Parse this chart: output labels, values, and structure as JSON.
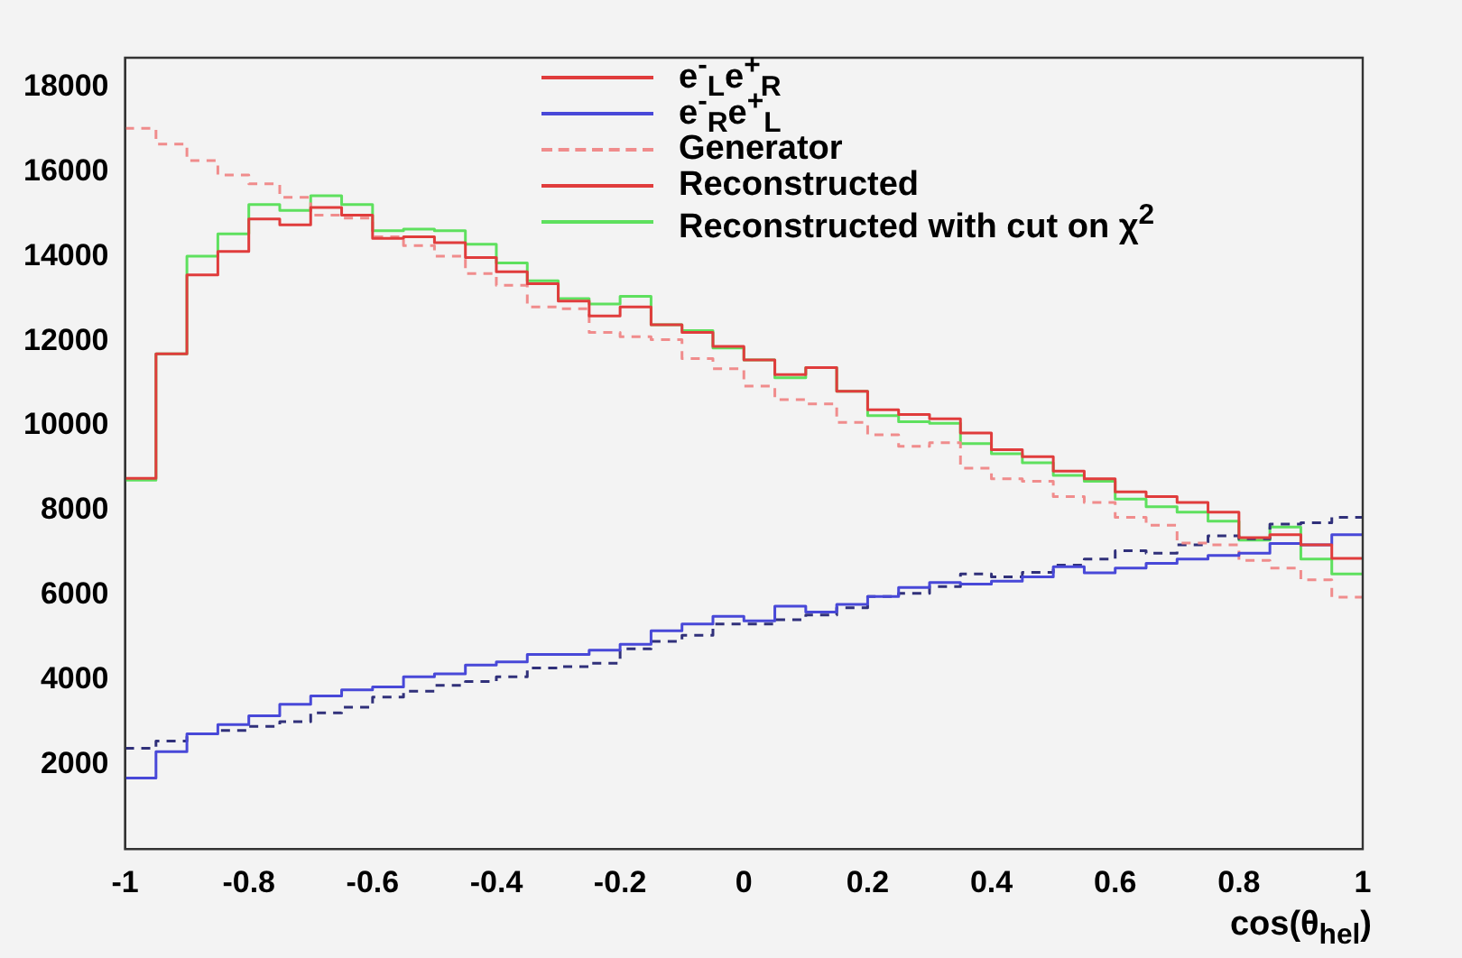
{
  "chart_data": {
    "type": "histogram",
    "xlabel": "cos(θ$_{hel}$)",
    "bins": [
      -1,
      -0.95,
      -0.9,
      -0.85,
      -0.8,
      -0.75,
      -0.7,
      -0.65,
      -0.6,
      -0.55,
      -0.5,
      -0.45,
      -0.4,
      -0.35,
      -0.3,
      -0.25,
      -0.2,
      -0.15,
      -0.1,
      -0.05,
      0,
      0.05,
      0.1,
      0.15,
      0.2,
      0.25,
      0.3,
      0.35,
      0.4,
      0.45,
      0.5,
      0.55,
      0.6,
      0.65,
      0.7,
      0.75,
      0.8,
      0.85,
      0.9,
      0.95,
      1
    ],
    "xlim": [
      -1,
      1
    ],
    "xticks": [
      -1,
      -0.8,
      -0.6,
      -0.4,
      -0.2,
      0,
      0.2,
      0.4,
      0.6,
      0.8,
      1
    ],
    "ylim": [
      0,
      18700
    ],
    "yticks": [
      2000,
      4000,
      6000,
      8000,
      10000,
      12000,
      14000,
      16000,
      18000
    ],
    "grid": false,
    "legend": "top",
    "annotations": [
      "Reconstructed"
    ],
    "series": [
      {
        "name": "e$^{-}$$_{L}$e$^{+}$$_{R}$",
        "color": "#e03c3c",
        "line_style": "solid",
        "values": [
          8760,
          11700,
          13570,
          14120,
          14890,
          14750,
          15160,
          14980,
          14430,
          14470,
          14330,
          13980,
          13640,
          13360,
          12950,
          12600,
          12810,
          12390,
          12210,
          11880,
          11560,
          11210,
          11380,
          10820,
          10380,
          10270,
          10170,
          9830,
          9440,
          9270,
          8930,
          8750,
          8440,
          8330,
          8190,
          7960,
          7360,
          7430,
          7190,
          6870
        ]
      },
      {
        "name": "e$^{-}$$_{R}$e$^{+}$$_{L}$",
        "color": "#4848d8",
        "line_style": "solid",
        "values": [
          1680,
          2300,
          2720,
          2940,
          3150,
          3420,
          3620,
          3760,
          3830,
          4070,
          4140,
          4350,
          4420,
          4600,
          4600,
          4700,
          4840,
          5160,
          5320,
          5500,
          5390,
          5740,
          5600,
          5780,
          5970,
          6180,
          6300,
          6260,
          6330,
          6430,
          6670,
          6530,
          6640,
          6750,
          6850,
          6940,
          6990,
          7220,
          7190,
          7430
        ]
      },
      {
        "name": "Generator",
        "color": "#f08c8c",
        "line_style": "dashed",
        "values": [
          17030,
          16660,
          16270,
          15930,
          15720,
          15400,
          14980,
          14910,
          14470,
          14260,
          14010,
          13600,
          13320,
          12810,
          12770,
          12210,
          12110,
          12040,
          11590,
          11350,
          10940,
          10620,
          10520,
          10080,
          9790,
          9520,
          9600,
          9000,
          8750,
          8690,
          8330,
          8190,
          7840,
          7650,
          7230,
          7190,
          6820,
          6640,
          6360,
          5950
        ]
      },
      {
        "color": "#30307a",
        "line_style": "dashed",
        "values": [
          2380,
          2550,
          2720,
          2800,
          2900,
          3010,
          3220,
          3350,
          3590,
          3730,
          3870,
          3960,
          4070,
          4280,
          4310,
          4390,
          4730,
          4910,
          5050,
          5320,
          5320,
          5420,
          5530,
          5700,
          5970,
          6040,
          6200,
          6500,
          6430,
          6540,
          6710,
          6850,
          7050,
          6990,
          7190,
          7400,
          7330,
          7680,
          7710,
          7840
        ]
      },
      {
        "name": "Reconstructed with cut on χ$^{2}$",
        "color": "#5ee05e",
        "line_style": "solid",
        "values": [
          8720,
          11700,
          14010,
          14540,
          15230,
          15090,
          15440,
          15230,
          14610,
          14650,
          14610,
          14290,
          13850,
          13430,
          13010,
          12880,
          13060,
          12390,
          12250,
          11840,
          11560,
          11140,
          11380,
          10820,
          10240,
          10100,
          10060,
          9580,
          9340,
          9130,
          8830,
          8690,
          8270,
          8090,
          7960,
          7750,
          7300,
          7610,
          6850,
          6500
        ]
      }
    ]
  }
}
